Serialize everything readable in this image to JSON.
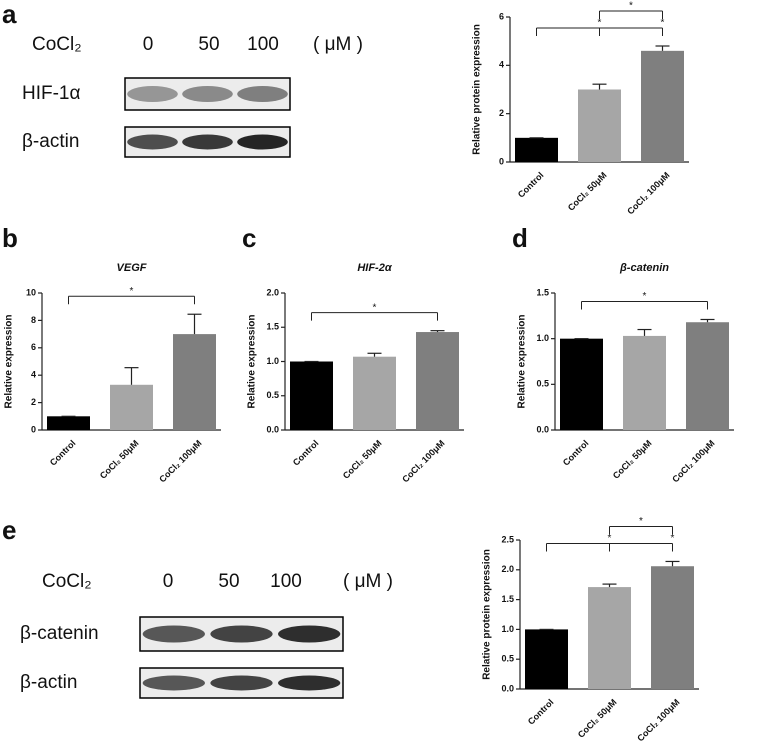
{
  "panel_labels": [
    "a",
    "b",
    "c",
    "d",
    "e"
  ],
  "blots": [
    {
      "treatment": "CoCl₂",
      "doses": [
        "0",
        "50",
        "100"
      ],
      "unit": "( μM )",
      "rows": [
        "HIF-1α",
        "β-actin"
      ]
    },
    {
      "treatment": "CoCl₂",
      "doses": [
        "0",
        "50",
        "100"
      ],
      "unit": "( μM )",
      "rows": [
        "β-catenin",
        "β-actin"
      ]
    }
  ],
  "chart_data": [
    {
      "type": "bar",
      "ylabel": "Relative protein expression",
      "categories": [
        "Control",
        "CoCl₂ 50μM",
        "CoCl₂ 100μM"
      ],
      "values": [
        1,
        3.0,
        4.6
      ],
      "errors": [
        0,
        0.22,
        0.2
      ],
      "colors": [
        "#000000",
        "#a6a6a6",
        "#7f7f7f"
      ],
      "ylim": [
        0,
        6
      ],
      "yticks": [
        0,
        2,
        4,
        6
      ],
      "significance": [
        {
          "pair": [
            0,
            1
          ],
          "label": "*"
        },
        {
          "pair": [
            0,
            2
          ],
          "label": "*"
        },
        {
          "pair": [
            1,
            2
          ],
          "label": "*"
        }
      ]
    },
    {
      "type": "bar",
      "title": "VEGF",
      "ylabel": "Relative expression",
      "categories": [
        "Control",
        "CoCl₂ 50μM",
        "CoCl₂ 100μM"
      ],
      "values": [
        1,
        3.3,
        7.0
      ],
      "errors": [
        0,
        1.25,
        1.45
      ],
      "colors": [
        "#000000",
        "#a6a6a6",
        "#7f7f7f"
      ],
      "ylim": [
        0,
        10
      ],
      "yticks": [
        0,
        2,
        4,
        6,
        8,
        10
      ],
      "significance": [
        {
          "pair": [
            0,
            2
          ],
          "label": "*"
        }
      ]
    },
    {
      "type": "bar",
      "title": "HIF-2α",
      "ylabel": "Relative expression",
      "categories": [
        "Control",
        "CoCl₂ 50μM",
        "CoCl₂ 100μM"
      ],
      "values": [
        1,
        1.07,
        1.43
      ],
      "errors": [
        0,
        0.05,
        0.02
      ],
      "colors": [
        "#000000",
        "#a6a6a6",
        "#7f7f7f"
      ],
      "ylim": [
        0,
        2
      ],
      "yticks": [
        {
          "value": 0,
          "label": "0.0"
        },
        {
          "value": 0.5,
          "label": "0.5"
        },
        {
          "value": 1,
          "label": "1.0"
        },
        {
          "value": 1.5,
          "label": "1.5"
        },
        {
          "value": 2,
          "label": "2.0"
        }
      ],
      "significance": [
        {
          "pair": [
            0,
            2
          ],
          "label": "*"
        }
      ]
    },
    {
      "type": "bar",
      "title": "β-catenin",
      "ylabel": "Relative expression",
      "categories": [
        "Control",
        "CoCl₂ 50μM",
        "CoCl₂ 100μM"
      ],
      "values": [
        1,
        1.03,
        1.18
      ],
      "errors": [
        0,
        0.07,
        0.03
      ],
      "colors": [
        "#000000",
        "#a6a6a6",
        "#7f7f7f"
      ],
      "ylim": [
        0,
        1.5
      ],
      "yticks": [
        {
          "value": 0,
          "label": "0.0"
        },
        {
          "value": 0.5,
          "label": "0.5"
        },
        {
          "value": 1,
          "label": "1.0"
        },
        {
          "value": 1.5,
          "label": "1.5"
        }
      ],
      "significance": [
        {
          "pair": [
            0,
            2
          ],
          "label": "*"
        }
      ]
    },
    {
      "type": "bar",
      "ylabel": "Relative protein expression",
      "categories": [
        "Control",
        "CoCl₂ 50μM",
        "CoCl₂ 100μM"
      ],
      "values": [
        1,
        1.71,
        2.06
      ],
      "errors": [
        0,
        0.05,
        0.08
      ],
      "colors": [
        "#000000",
        "#a6a6a6",
        "#7f7f7f"
      ],
      "ylim": [
        0,
        2.5
      ],
      "yticks": [
        {
          "value": 0,
          "label": "0.0"
        },
        {
          "value": 0.5,
          "label": "0.5"
        },
        {
          "value": 1,
          "label": "1.0"
        },
        {
          "value": 1.5,
          "label": "1.5"
        },
        {
          "value": 2,
          "label": "2.0"
        },
        {
          "value": 2.5,
          "label": "2.5"
        }
      ],
      "significance": [
        {
          "pair": [
            0,
            1
          ],
          "label": "*"
        },
        {
          "pair": [
            0,
            2
          ],
          "label": "*"
        },
        {
          "pair": [
            1,
            2
          ],
          "label": "*"
        }
      ]
    }
  ]
}
